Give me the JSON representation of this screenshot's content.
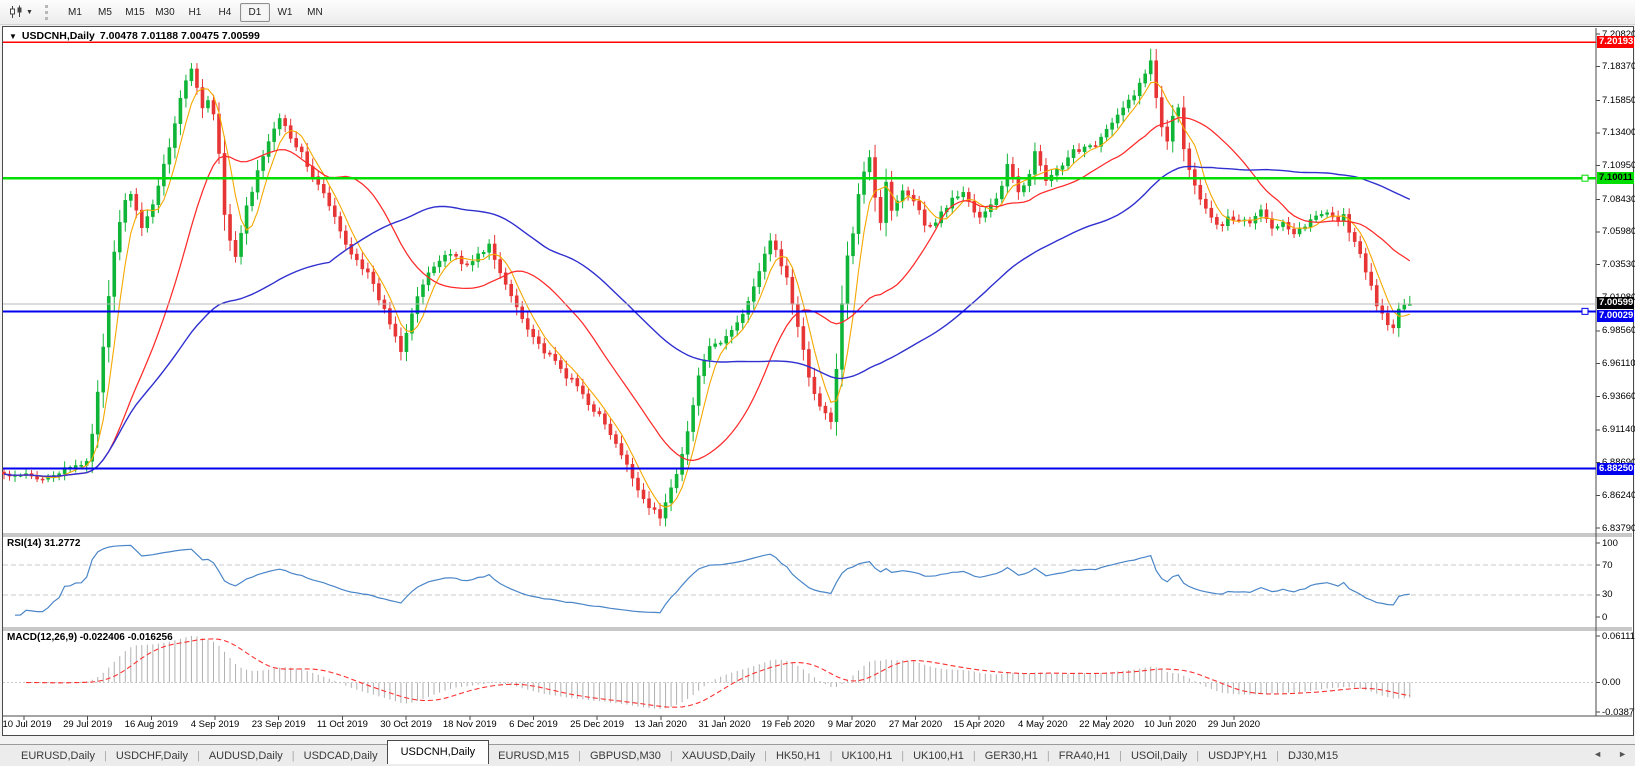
{
  "toolbar": {
    "timeframes": [
      "M1",
      "M5",
      "M15",
      "M30",
      "H1",
      "H4",
      "D1",
      "W1",
      "MN"
    ],
    "active_timeframe": "D1",
    "dropdown_caret": "▼"
  },
  "chart": {
    "collapse_icon": "▼",
    "title": "USDCNH,Daily",
    "ohlc_display": "7.00478 7.01188 7.00475 7.00599",
    "price_ticks": [
      "7.20820",
      "7.18370",
      "7.15850",
      "7.13400",
      "7.10950",
      "7.08430",
      "7.05980",
      "7.03530",
      "7.01080",
      "6.98560",
      "6.96110",
      "6.93660",
      "6.91140",
      "6.88690",
      "6.86240",
      "6.83790"
    ],
    "dates": [
      "10 Jul 2019",
      "29 Jul 2019",
      "16 Aug 2019",
      "4 Sep 2019",
      "23 Sep 2019",
      "11 Oct 2019",
      "30 Oct 2019",
      "18 Nov 2019",
      "6 Dec 2019",
      "25 Dec 2019",
      "13 Jan 2020",
      "31 Jan 2020",
      "19 Feb 2020",
      "9 Mar 2020",
      "27 Mar 2020",
      "15 Apr 2020",
      "4 May 2020",
      "22 May 2020",
      "10 Jun 2020",
      "29 Jun 2020"
    ]
  },
  "rsi": {
    "label": "RSI(14) 31.2772",
    "axis": [
      "100",
      "70",
      "30",
      "0"
    ]
  },
  "macd": {
    "label": "MACD(12,26,9) -0.022406 -0.016256",
    "axis": [
      "0.0611195",
      "0.00",
      "-0.03877"
    ]
  },
  "tabs": {
    "items": [
      "EURUSD,Daily",
      "USDCHF,Daily",
      "AUDUSD,Daily",
      "USDCAD,Daily",
      "USDCNH,Daily",
      "EURUSD,M15",
      "GBPUSD,M30",
      "XAUUSD,Daily",
      "HK50,H1",
      "UK100,H1",
      "UK100,H1",
      "GER30,H1",
      "FRA40,H1",
      "USOil,Daily",
      "USDJPY,H1",
      "DJ30,M15"
    ],
    "active": "USDCNH,Daily",
    "separator": "|",
    "scroll_left": "◄",
    "scroll_right": "►"
  },
  "chart_data": {
    "type": "candlestick",
    "symbol": "USDCNH",
    "timeframe": "Daily",
    "ohlc_last": {
      "open": 7.00478,
      "high": 7.01188,
      "low": 7.00475,
      "close": 7.00599
    },
    "y_axis_ticks": [
      7.2082,
      7.1837,
      7.1585,
      7.134,
      7.1095,
      7.0843,
      7.0598,
      7.0353,
      7.0108,
      6.9856,
      6.9611,
      6.9366,
      6.9114,
      6.8869,
      6.8624,
      6.8379
    ],
    "y_range": [
      6.8379,
      7.2082
    ],
    "x_axis_labels": [
      "10 Jul 2019",
      "29 Jul 2019",
      "16 Aug 2019",
      "4 Sep 2019",
      "23 Sep 2019",
      "11 Oct 2019",
      "30 Oct 2019",
      "18 Nov 2019",
      "6 Dec 2019",
      "25 Dec 2019",
      "13 Jan 2020",
      "31 Jan 2020",
      "19 Feb 2020",
      "9 Mar 2020",
      "27 Mar 2020",
      "15 Apr 2020",
      "4 May 2020",
      "22 May 2020",
      "10 Jun 2020",
      "29 Jun 2020"
    ],
    "grid": false,
    "candle_up_color": "#0fb537",
    "candle_down_color": "#e73434",
    "horizontal_lines": [
      {
        "price": 7.20193,
        "label": "7.20193",
        "color": "#ff0000",
        "tag_bg": "#ff0000",
        "tag_fg": "#ffffff",
        "width": 1.6,
        "handle": false
      },
      {
        "price": 7.10011,
        "label": "7.10011",
        "color": "#00dd00",
        "tag_bg": "#00dd00",
        "tag_fg": "#000000",
        "width": 2.2,
        "handle": true
      },
      {
        "price": 7.00599,
        "label": "7.00599",
        "color": "#b8b8b8",
        "tag_bg": "#000000",
        "tag_fg": "#ffffff",
        "width": 1,
        "handle": false,
        "style": "current-price"
      },
      {
        "price": 7.00029,
        "label": "7.00029",
        "color": "#0000ee",
        "tag_bg": "#0000ee",
        "tag_fg": "#ffffff",
        "width": 2.2,
        "handle": true
      },
      {
        "price": 6.8825,
        "label": "6.88250",
        "color": "#0000ee",
        "tag_bg": "#0000ee",
        "tag_fg": "#ffffff",
        "width": 2.2,
        "handle": false
      }
    ],
    "moving_averages": [
      {
        "period": 5,
        "color": "#f5a800"
      },
      {
        "period": 20,
        "color": "#ff2a2a"
      },
      {
        "period": 60,
        "color": "#3030d0"
      }
    ],
    "indicators": {
      "rsi": {
        "period": 14,
        "current": 31.2772,
        "levels": [
          70,
          30
        ],
        "range": [
          0,
          100
        ],
        "color": "#4a86c8"
      },
      "macd": {
        "fast": 12,
        "slow": 26,
        "signal_period": 9,
        "current": -0.022406,
        "signal_current": -0.016256,
        "axis_max": 0.0611195,
        "axis_min": -0.03877,
        "histogram_color": "#b0b0b0",
        "signal_color": "#ff3030"
      }
    },
    "candles_count": 256,
    "close_anchors": [
      [
        0,
        6.878
      ],
      [
        2,
        6.8755
      ],
      [
        4,
        6.8775
      ],
      [
        6,
        6.8745
      ],
      [
        8,
        6.8775
      ],
      [
        10,
        6.8795
      ],
      [
        12,
        6.8825
      ],
      [
        14,
        6.8855
      ],
      [
        15,
        6.889
      ],
      [
        16,
        6.91
      ],
      [
        17,
        6.938
      ],
      [
        18,
        6.972
      ],
      [
        19,
        7.01
      ],
      [
        20,
        7.045
      ],
      [
        21,
        7.068
      ],
      [
        22,
        7.082
      ],
      [
        23,
        7.09
      ],
      [
        24,
        7.075
      ],
      [
        25,
        7.061
      ],
      [
        26,
        7.07
      ],
      [
        27,
        7.082
      ],
      [
        28,
        7.095
      ],
      [
        29,
        7.11
      ],
      [
        30,
        7.125
      ],
      [
        31,
        7.142
      ],
      [
        32,
        7.16
      ],
      [
        33,
        7.172
      ],
      [
        34,
        7.183
      ],
      [
        35,
        7.168
      ],
      [
        36,
        7.155
      ],
      [
        37,
        7.158
      ],
      [
        38,
        7.148
      ],
      [
        39,
        7.118
      ],
      [
        40,
        7.072
      ],
      [
        41,
        7.052
      ],
      [
        42,
        7.04
      ],
      [
        43,
        7.06
      ],
      [
        44,
        7.078
      ],
      [
        45,
        7.09
      ],
      [
        46,
        7.104
      ],
      [
        47,
        7.118
      ],
      [
        48,
        7.126
      ],
      [
        49,
        7.138
      ],
      [
        50,
        7.147
      ],
      [
        52,
        7.132
      ],
      [
        54,
        7.118
      ],
      [
        56,
        7.102
      ],
      [
        58,
        7.088
      ],
      [
        60,
        7.07
      ],
      [
        62,
        7.05
      ],
      [
        64,
        7.04
      ],
      [
        66,
        7.028
      ],
      [
        68,
        7.01
      ],
      [
        70,
        6.992
      ],
      [
        71,
        6.982
      ],
      [
        72,
        6.972
      ],
      [
        73,
        6.986
      ],
      [
        74,
        7.0
      ],
      [
        75,
        7.012
      ],
      [
        76,
        7.02
      ],
      [
        78,
        7.034
      ],
      [
        80,
        7.043
      ],
      [
        82,
        7.042
      ],
      [
        84,
        7.034
      ],
      [
        86,
        7.042
      ],
      [
        88,
        7.05
      ],
      [
        90,
        7.028
      ],
      [
        92,
        7.012
      ],
      [
        94,
        6.996
      ],
      [
        96,
        6.982
      ],
      [
        98,
        6.97
      ],
      [
        100,
        6.962
      ],
      [
        102,
        6.952
      ],
      [
        104,
        6.944
      ],
      [
        106,
        6.932
      ],
      [
        108,
        6.922
      ],
      [
        110,
        6.908
      ],
      [
        112,
        6.892
      ],
      [
        114,
        6.876
      ],
      [
        116,
        6.86
      ],
      [
        118,
        6.85
      ],
      [
        119,
        6.846
      ],
      [
        120,
        6.856
      ],
      [
        122,
        6.88
      ],
      [
        124,
        6.91
      ],
      [
        126,
        6.95
      ],
      [
        127,
        6.966
      ],
      [
        128,
        6.972
      ],
      [
        130,
        6.976
      ],
      [
        132,
        6.986
      ],
      [
        134,
        6.998
      ],
      [
        136,
        7.02
      ],
      [
        138,
        7.044
      ],
      [
        139,
        7.051
      ],
      [
        140,
        7.046
      ],
      [
        142,
        7.025
      ],
      [
        144,
        6.988
      ],
      [
        146,
        6.952
      ],
      [
        148,
        6.929
      ],
      [
        150,
        6.917
      ],
      [
        151,
        6.958
      ],
      [
        152,
        7.005
      ],
      [
        153,
        7.04
      ],
      [
        154,
        7.06
      ],
      [
        155,
        7.09
      ],
      [
        156,
        7.106
      ],
      [
        157,
        7.117
      ],
      [
        158,
        7.086
      ],
      [
        159,
        7.068
      ],
      [
        160,
        7.096
      ],
      [
        161,
        7.077
      ],
      [
        162,
        7.085
      ],
      [
        163,
        7.092
      ],
      [
        164,
        7.088
      ],
      [
        165,
        7.085
      ],
      [
        166,
        7.075
      ],
      [
        167,
        7.067
      ],
      [
        168,
        7.063
      ],
      [
        170,
        7.074
      ],
      [
        172,
        7.084
      ],
      [
        174,
        7.09
      ],
      [
        176,
        7.075
      ],
      [
        177,
        7.07
      ],
      [
        178,
        7.074
      ],
      [
        180,
        7.085
      ],
      [
        181,
        7.095
      ],
      [
        182,
        7.11
      ],
      [
        183,
        7.1
      ],
      [
        184,
        7.088
      ],
      [
        185,
        7.095
      ],
      [
        186,
        7.105
      ],
      [
        187,
        7.122
      ],
      [
        188,
        7.108
      ],
      [
        189,
        7.098
      ],
      [
        190,
        7.102
      ],
      [
        192,
        7.108
      ],
      [
        194,
        7.12
      ],
      [
        196,
        7.124
      ],
      [
        198,
        7.126
      ],
      [
        200,
        7.136
      ],
      [
        202,
        7.146
      ],
      [
        204,
        7.158
      ],
      [
        206,
        7.17
      ],
      [
        207,
        7.178
      ],
      [
        208,
        7.189
      ],
      [
        209,
        7.162
      ],
      [
        210,
        7.14
      ],
      [
        211,
        7.13
      ],
      [
        212,
        7.148
      ],
      [
        213,
        7.152
      ],
      [
        214,
        7.124
      ],
      [
        215,
        7.108
      ],
      [
        216,
        7.094
      ],
      [
        217,
        7.086
      ],
      [
        218,
        7.079
      ],
      [
        220,
        7.067
      ],
      [
        221,
        7.063
      ],
      [
        222,
        7.07
      ],
      [
        224,
        7.069
      ],
      [
        226,
        7.067
      ],
      [
        228,
        7.075
      ],
      [
        230,
        7.063
      ],
      [
        232,
        7.069
      ],
      [
        234,
        7.059
      ],
      [
        236,
        7.065
      ],
      [
        238,
        7.071
      ],
      [
        240,
        7.076
      ],
      [
        242,
        7.068
      ],
      [
        243,
        7.072
      ],
      [
        244,
        7.061
      ],
      [
        245,
        7.052
      ],
      [
        246,
        7.042
      ],
      [
        247,
        7.03
      ],
      [
        248,
        7.018
      ],
      [
        249,
        7.006
      ],
      [
        250,
        6.998
      ],
      [
        251,
        6.992
      ],
      [
        252,
        6.988
      ],
      [
        253,
        7.002
      ],
      [
        254,
        7.005
      ],
      [
        255,
        7.00599
      ]
    ]
  }
}
